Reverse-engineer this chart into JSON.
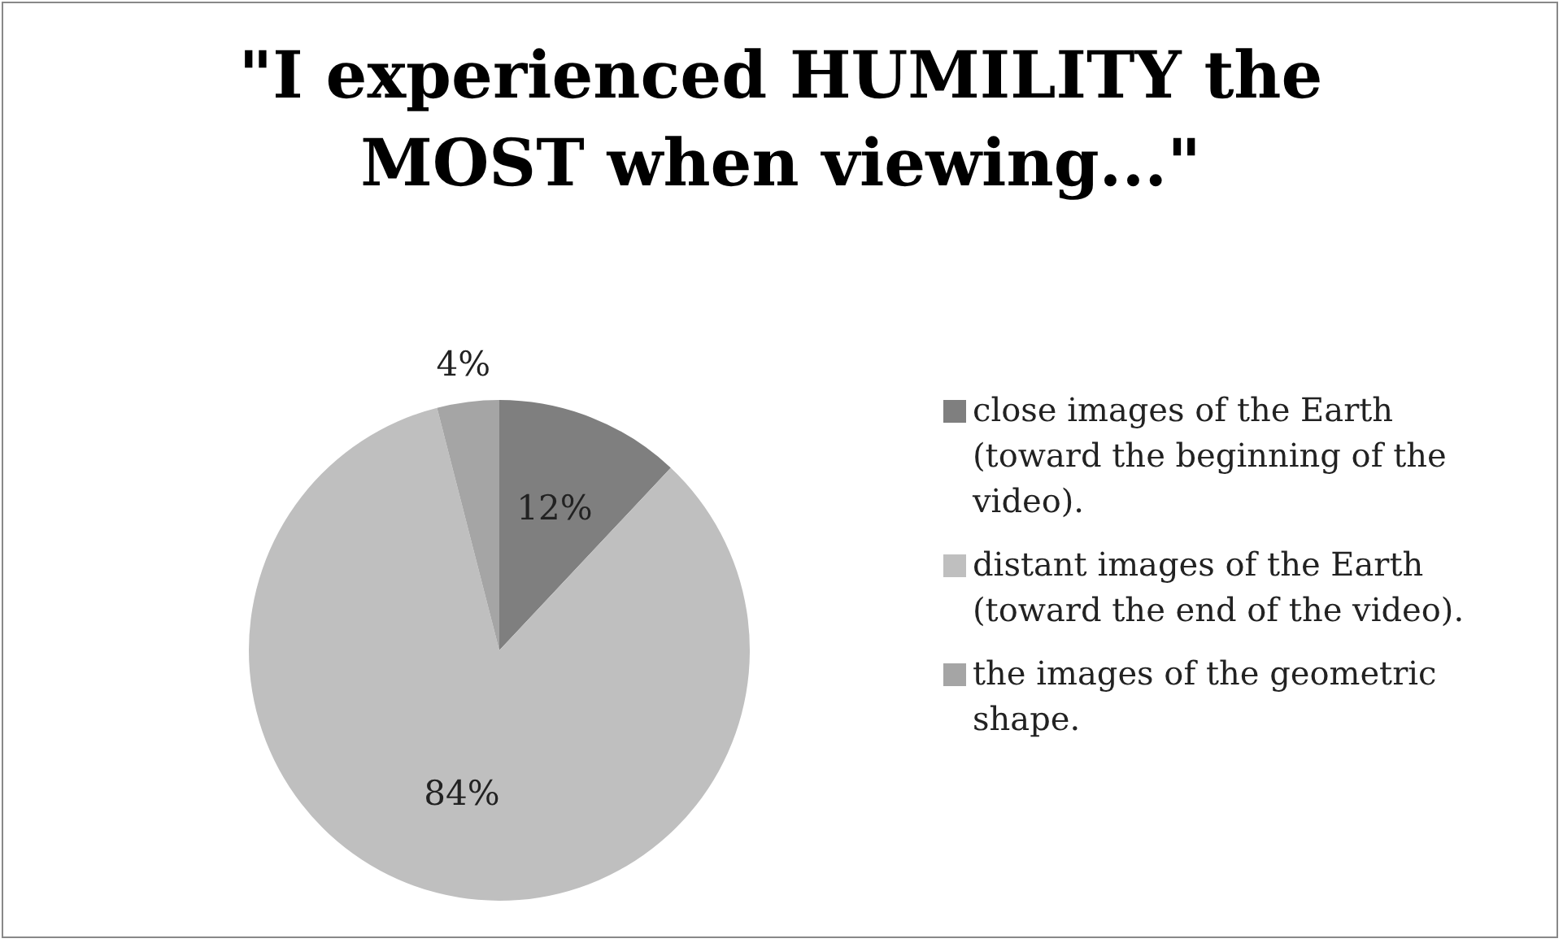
{
  "chart_data": {
    "type": "pie",
    "title": "\"I experienced HUMILITY the MOST when viewing...\"",
    "categories": [
      "close images of the Earth (toward the beginning of the video).",
      "distant images of the Earth (toward the end of the video).",
      "the images of the geometric shape."
    ],
    "values": [
      12,
      84,
      4
    ],
    "colors": [
      "#7f7f7f",
      "#bfbfbf",
      "#a5a5a5"
    ],
    "value_labels": [
      "12%",
      "84%",
      "4%"
    ],
    "legend": "right"
  }
}
